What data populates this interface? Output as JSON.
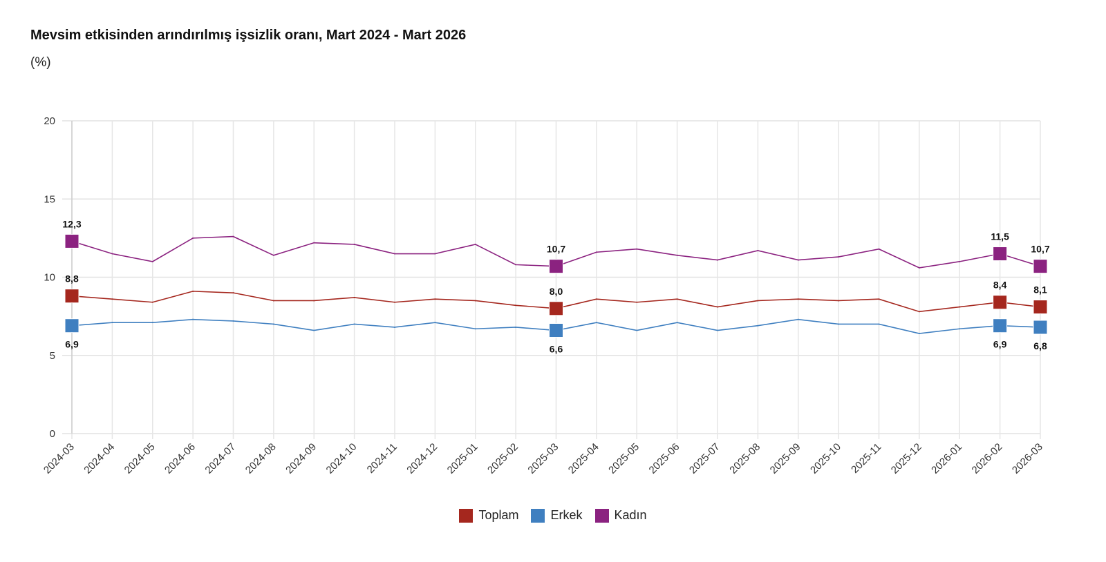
{
  "chart_data": {
    "type": "line",
    "title": "Mevsim etkisinden arındırılmış işsizlik oranı, Mart 2024 - Mart 2026",
    "subtitle": "(%)",
    "xlabel": "",
    "ylabel": "",
    "ylim": [
      0,
      20
    ],
    "yticks": [
      "0",
      "5",
      "10",
      "15",
      "20"
    ],
    "ytick_values": [
      0,
      5,
      10,
      15,
      20
    ],
    "grid": true,
    "legend_position": "bottom-center",
    "x": [
      "2024-03",
      "2024-04",
      "2024-05",
      "2024-06",
      "2024-07",
      "2024-08",
      "2024-09",
      "2024-10",
      "2024-11",
      "2024-12",
      "2025-01",
      "2025-02",
      "2025-03",
      "2025-04",
      "2025-05",
      "2025-06",
      "2025-07",
      "2025-08",
      "2025-09",
      "2025-10",
      "2025-11",
      "2025-12",
      "2026-01",
      "2026-02",
      "2026-03"
    ],
    "labeled_indices": [
      0,
      12,
      23,
      24
    ],
    "series": [
      {
        "name": "Toplam",
        "color": "#A5271E",
        "label_pos": "above",
        "values": [
          8.8,
          8.6,
          8.4,
          9.1,
          9.0,
          8.5,
          8.5,
          8.7,
          8.4,
          8.6,
          8.5,
          8.2,
          8.0,
          8.6,
          8.4,
          8.6,
          8.1,
          8.5,
          8.6,
          8.5,
          8.6,
          7.8,
          8.1,
          8.4,
          8.1
        ],
        "labels": [
          "8,8",
          "8,0",
          "8,4",
          "8,1"
        ]
      },
      {
        "name": "Erkek",
        "color": "#3F7FC0",
        "label_pos": "below",
        "values": [
          6.9,
          7.1,
          7.1,
          7.3,
          7.2,
          7.0,
          6.6,
          7.0,
          6.8,
          7.1,
          6.7,
          6.8,
          6.6,
          7.1,
          6.6,
          7.1,
          6.6,
          6.9,
          7.3,
          7.0,
          7.0,
          6.4,
          6.7,
          6.9,
          6.8
        ],
        "labels": [
          "6,9",
          "6,6",
          "6,9",
          "6,8"
        ]
      },
      {
        "name": "Kadın",
        "color": "#8B2280",
        "label_pos": "above",
        "values": [
          12.3,
          11.5,
          11.0,
          12.5,
          12.6,
          11.4,
          12.2,
          12.1,
          11.5,
          11.5,
          12.1,
          10.8,
          10.7,
          11.6,
          11.8,
          11.4,
          11.1,
          11.7,
          11.1,
          11.3,
          11.8,
          10.6,
          11.0,
          11.5,
          10.7
        ],
        "labels": [
          "12,3",
          "10,7",
          "11,5",
          "10,7"
        ]
      }
    ]
  }
}
